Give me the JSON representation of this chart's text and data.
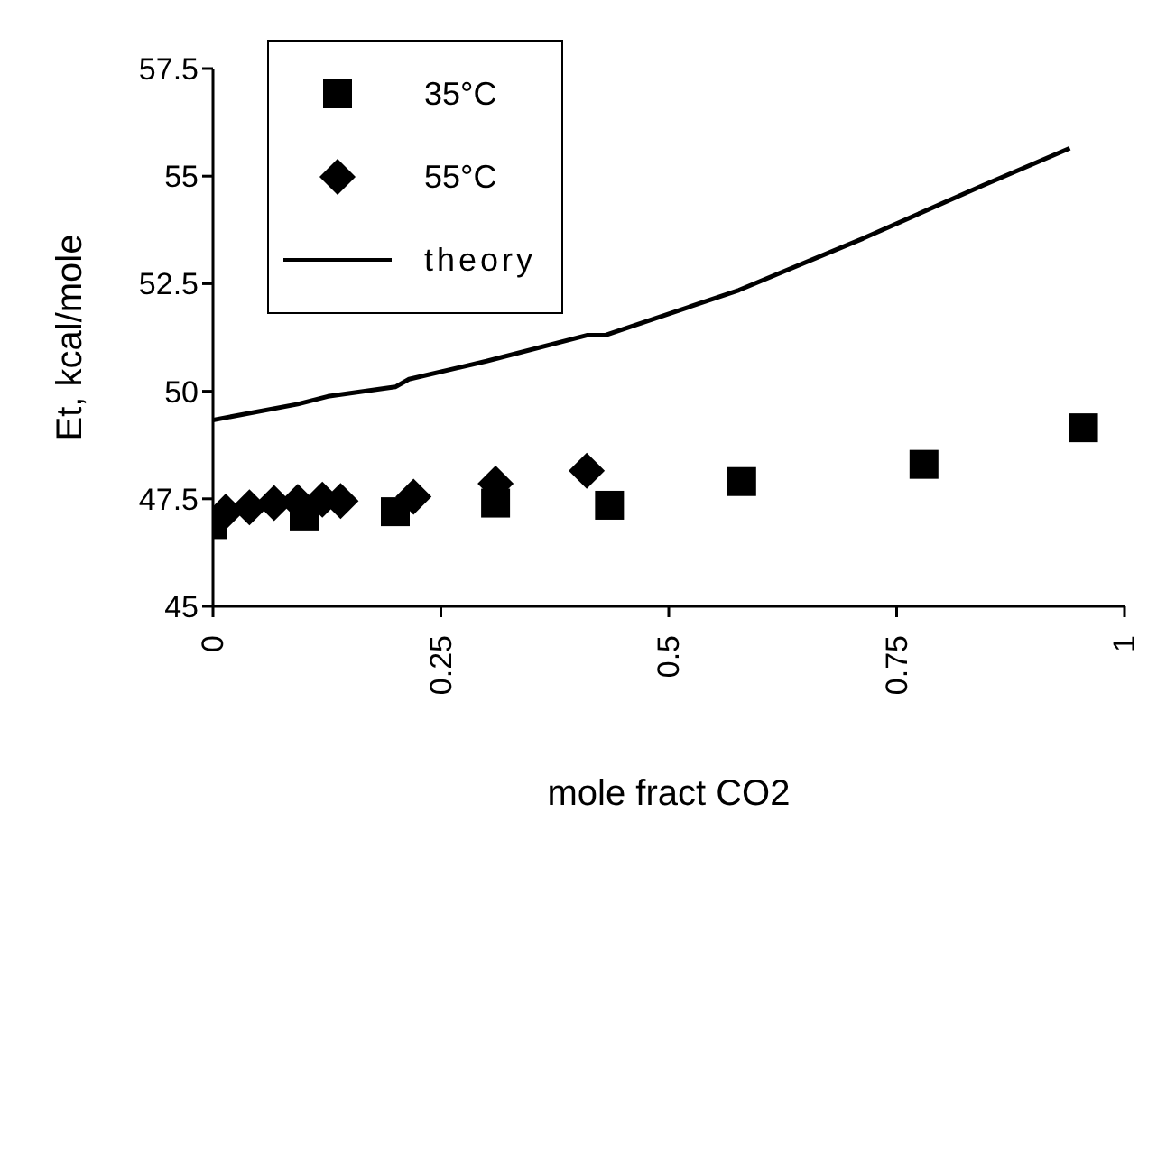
{
  "chart_data": {
    "type": "scatter",
    "xlabel": "mole fract CO2",
    "ylabel": "Et, kcal/mole",
    "xlim": [
      0,
      1
    ],
    "xticks": [
      0,
      0.25,
      0.5,
      0.75,
      1
    ],
    "ylim": [
      45,
      57.5
    ],
    "yticks": [
      45,
      47.5,
      50,
      52.5,
      55,
      57.5
    ],
    "legend": "top left",
    "grid": false,
    "series": [
      {
        "name": "35°C",
        "marker": "square",
        "color": "#000000",
        "x": [
          0,
          0.1,
          0.2,
          0.31,
          0.435,
          0.58,
          0.78,
          0.955
        ],
        "values": [
          46.9,
          47.1,
          47.2,
          47.4,
          47.35,
          47.9,
          48.3,
          49.15
        ]
      },
      {
        "name": "55°C",
        "marker": "diamond",
        "color": "#000000",
        "x": [
          0.014,
          0.04,
          0.067,
          0.093,
          0.12,
          0.14,
          0.22,
          0.31,
          0.41
        ],
        "values": [
          47.2,
          47.3,
          47.4,
          47.43,
          47.48,
          47.45,
          47.55,
          47.85,
          48.15
        ]
      },
      {
        "name": "theory",
        "type": "line",
        "marker": "none",
        "line_style": "solid",
        "color": "#000000",
        "x": [
          0,
          0.093,
          0.126,
          0.2,
          0.215,
          0.3,
          0.41,
          0.43,
          0.577,
          0.713,
          0.844,
          0.94
        ],
        "values": [
          49.33,
          49.7,
          49.88,
          50.1,
          50.28,
          50.7,
          51.3,
          51.3,
          52.35,
          53.55,
          54.78,
          55.65
        ]
      }
    ]
  }
}
